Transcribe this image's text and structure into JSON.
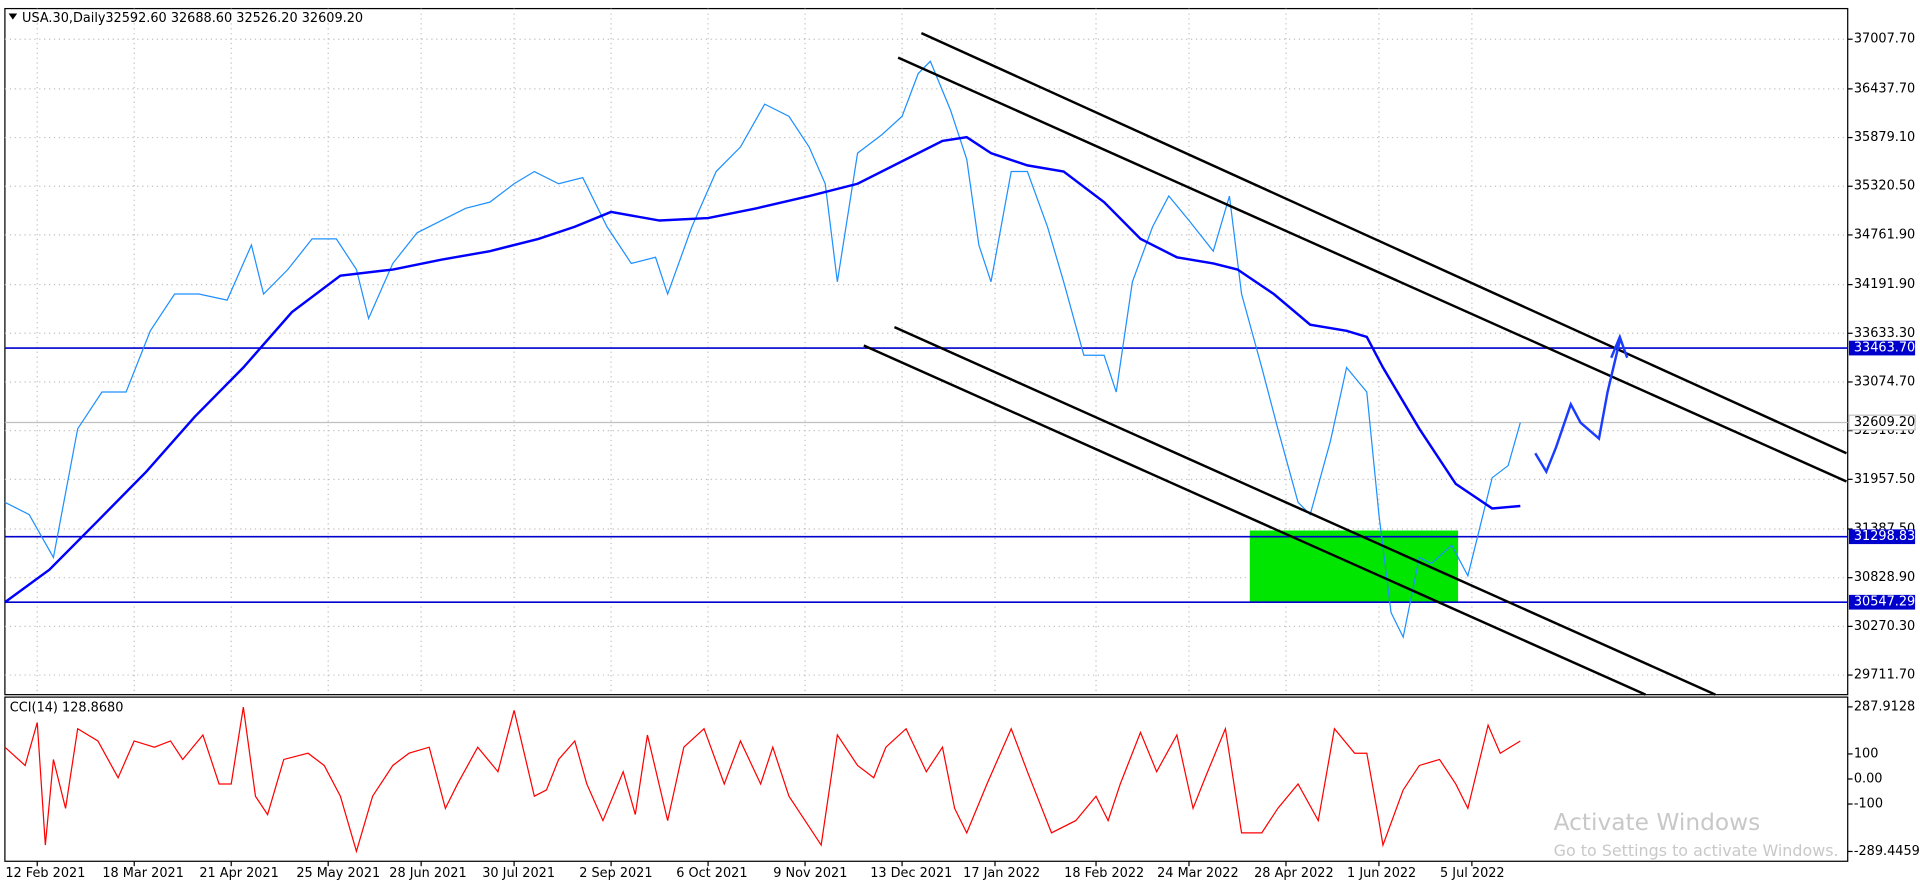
{
  "chart_data": [
    {
      "type": "line",
      "title": "USA.30,Daily",
      "ohlc": "32592.60 32688.60 32526.20 32609.20",
      "xlim": [
        0,
        456
      ],
      "xticks": [
        {
          "value": 8,
          "label": "12 Feb 2021"
        },
        {
          "value": 32,
          "label": "18 Mar 2021"
        },
        {
          "value": 56,
          "label": "21 Apr 2021"
        },
        {
          "value": 80,
          "label": "25 May 2021"
        },
        {
          "value": 103,
          "label": "28 Jun 2021"
        },
        {
          "value": 126,
          "label": "30 Jul 2021"
        },
        {
          "value": 150,
          "label": "2 Sep 2021"
        },
        {
          "value": 174,
          "label": "6 Oct 2021"
        },
        {
          "value": 198,
          "label": "9 Nov 2021"
        },
        {
          "value": 222,
          "label": "13 Dec 2021"
        },
        {
          "value": 245,
          "label": "17 Jan 2022"
        },
        {
          "value": 270,
          "label": "18 Feb 2022"
        },
        {
          "value": 293,
          "label": "24 Mar 2022"
        },
        {
          "value": 317,
          "label": "28 Apr 2022"
        },
        {
          "value": 340,
          "label": "1 Jun 2022"
        },
        {
          "value": 363,
          "label": "5 Jul 2022"
        }
      ],
      "ylim": [
        29486.8,
        37359.1
      ],
      "yticks": [
        {
          "value": 37007.7,
          "label": "37007.70"
        },
        {
          "value": 36437.7,
          "label": "36437.70"
        },
        {
          "value": 35879.1,
          "label": "35879.10"
        },
        {
          "value": 35320.5,
          "label": "35320.50"
        },
        {
          "value": 34761.9,
          "label": "34761.90"
        },
        {
          "value": 34191.9,
          "label": "34191.90"
        },
        {
          "value": 33633.3,
          "label": "33633.30"
        },
        {
          "value": 33074.7,
          "label": "33074.70"
        },
        {
          "value": 32516.1,
          "label": "32516.10"
        },
        {
          "value": 31957.5,
          "label": "31957.50"
        },
        {
          "value": 31387.5,
          "label": "31387.50"
        },
        {
          "value": 30828.9,
          "label": "30828.90"
        },
        {
          "value": 30270.3,
          "label": "30270.30"
        },
        {
          "value": 29711.7,
          "label": "29711.70"
        }
      ],
      "grid": true,
      "levels": [
        {
          "value": 33463.7,
          "label": "33463.70"
        },
        {
          "value": 31298.83,
          "label": "31298.83"
        },
        {
          "value": 30547.29,
          "label": "30547.29"
        }
      ],
      "level_color": "#0000cd",
      "last_price": {
        "value": 32609.2,
        "label": "32609.20"
      },
      "series": [
        {
          "color": "#1e90ff",
          "x": [
            0,
            6,
            12,
            18,
            24,
            30,
            36,
            42,
            48,
            55,
            61,
            64,
            70,
            76,
            82,
            87,
            90,
            96,
            102,
            108,
            114,
            120,
            126,
            131,
            137,
            143,
            149,
            155,
            161,
            164,
            170,
            176,
            182,
            188,
            194,
            199,
            203,
            206,
            211,
            217,
            222,
            226,
            229,
            234,
            238,
            241,
            244,
            249,
            253,
            258,
            262,
            267,
            272,
            275,
            279,
            284,
            288,
            293,
            299,
            303,
            306,
            311,
            315,
            320,
            323,
            328,
            332,
            337,
            340,
            343,
            346,
            350,
            353,
            358,
            362,
            365,
            368,
            372,
            375
          ],
          "values": [
            31694,
            31553,
            31061,
            32537,
            32959,
            32959,
            33662,
            34084,
            34084,
            34013,
            34646,
            34084,
            34365,
            34716,
            34716,
            34365,
            33802,
            34435,
            34786,
            34927,
            35068,
            35138,
            35349,
            35489,
            35349,
            35419,
            34856,
            34435,
            34505,
            34084,
            34856,
            35489,
            35771,
            36262,
            36122,
            35771,
            35349,
            34224,
            35700,
            35911,
            36122,
            36614,
            36755,
            36192,
            35630,
            34646,
            34224,
            35489,
            35489,
            34856,
            34224,
            33381,
            33381,
            32959,
            34224,
            34856,
            35208,
            34927,
            34575,
            35208,
            34084,
            33240,
            32537,
            31694,
            31553,
            32396,
            33240,
            32959,
            31553,
            30428,
            30147,
            31061,
            30991,
            31202,
            30850,
            31412,
            31975,
            32115,
            32607
          ]
        },
        {
          "color": "#0000ff",
          "x": [
            0,
            11,
            23,
            35,
            47,
            59,
            71,
            83,
            96,
            108,
            120,
            132,
            141,
            150,
            162,
            174,
            186,
            199,
            211,
            223,
            232,
            238,
            244,
            253,
            262,
            272,
            281,
            290,
            299,
            305,
            314,
            323,
            332,
            337,
            341,
            350,
            359,
            368,
            375
          ],
          "values": [
            30547,
            30920,
            31482,
            32045,
            32677,
            33240,
            33875,
            34294,
            34365,
            34477,
            34575,
            34716,
            34856,
            35025,
            34927,
            34955,
            35068,
            35208,
            35349,
            35630,
            35841,
            35883,
            35700,
            35560,
            35489,
            35138,
            34716,
            34505,
            34435,
            34365,
            34084,
            33732,
            33662,
            33592,
            33240,
            32537,
            31905,
            31623,
            31652
          ]
        }
      ]
    },
    {
      "type": "line",
      "title": "CCI(14) 128.8680",
      "xlim": [
        0,
        456
      ],
      "ylim": [
        -328.6,
        327.0
      ],
      "yticks": [
        {
          "value": 287.9128,
          "label": "287.9128"
        },
        100,
        {
          "value": 0,
          "label": "0.00"
        },
        -100,
        {
          "value": -289.4459,
          "label": "-289.4459"
        }
      ],
      "series": [
        {
          "color": "#ff0000",
          "x": [
            0,
            5,
            8,
            10,
            12,
            15,
            18,
            23,
            28,
            32,
            37,
            41,
            44,
            49,
            53,
            56,
            59,
            62,
            65,
            69,
            75,
            79,
            83,
            87,
            91,
            96,
            100,
            105,
            109,
            112,
            117,
            122,
            126,
            131,
            134,
            137,
            141,
            144,
            148,
            153,
            156,
            159,
            164,
            168,
            173,
            178,
            182,
            187,
            190,
            194,
            199,
            202,
            206,
            211,
            215,
            218,
            223,
            228,
            232,
            235,
            238,
            243,
            249,
            253,
            259,
            265,
            270,
            273,
            276,
            281,
            285,
            290,
            294,
            297,
            302,
            306,
            311,
            315,
            320,
            325,
            329,
            334,
            337,
            340,
            341,
            346,
            350,
            355,
            359,
            362,
            367,
            370,
            375
          ],
          "values": [
            127,
            54,
            225,
            -264,
            78,
            -117,
            201,
            152,
            5,
            152,
            127,
            152,
            78,
            176,
            -20,
            -20,
            287,
            -69,
            -142,
            78,
            103,
            54,
            -69,
            -289,
            -69,
            54,
            103,
            127,
            -117,
            -20,
            127,
            29,
            274,
            -69,
            -44,
            78,
            152,
            -20,
            -166,
            29,
            -142,
            176,
            -166,
            127,
            201,
            -20,
            152,
            -20,
            127,
            -69,
            -191,
            -264,
            176,
            54,
            5,
            127,
            201,
            29,
            127,
            -117,
            -215,
            -20,
            201,
            29,
            -215,
            -166,
            -69,
            -166,
            -20,
            186,
            29,
            176,
            -117,
            5,
            201,
            -215,
            -215,
            -117,
            -20,
            -166,
            201,
            103,
            103,
            -166,
            -264,
            -44,
            54,
            78,
            -20,
            -117,
            215,
            103,
            152
          ]
        }
      ]
    }
  ],
  "watermark": {
    "title": "Activate Windows",
    "text": "Go to Settings to activate Windows."
  }
}
